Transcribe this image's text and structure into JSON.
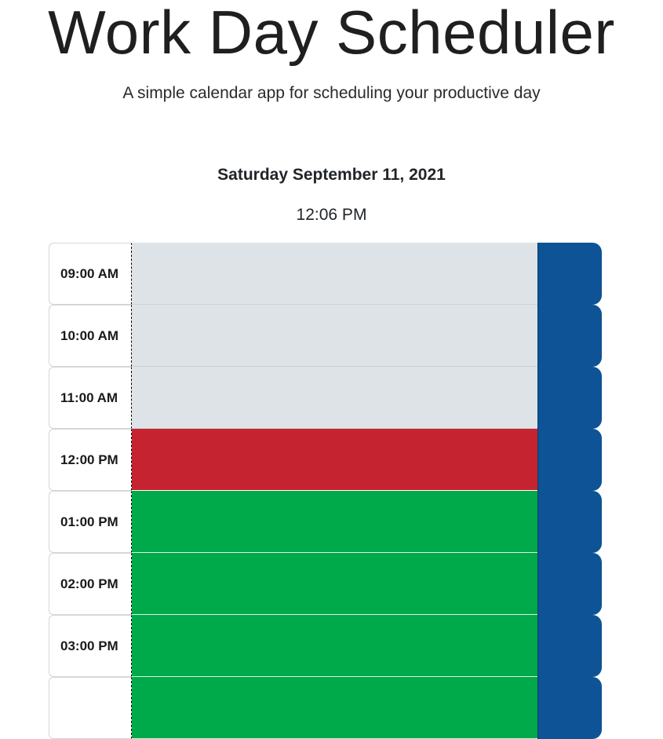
{
  "header": {
    "title": "Work Day Scheduler",
    "subtitle": "A simple calendar app for scheduling your productive day"
  },
  "today": {
    "date": "Saturday September 11, 2021",
    "time": "12:06 PM"
  },
  "colors": {
    "past": "#dde3e7",
    "present": "#c5232f",
    "future": "#00a94a",
    "save_button": "#0d5396"
  },
  "time_blocks": [
    {
      "hour": "09:00 AM",
      "state": "past",
      "description": ""
    },
    {
      "hour": "10:00 AM",
      "state": "past",
      "description": ""
    },
    {
      "hour": "11:00 AM",
      "state": "past",
      "description": ""
    },
    {
      "hour": "12:00 PM",
      "state": "present",
      "description": ""
    },
    {
      "hour": "01:00 PM",
      "state": "future",
      "description": ""
    },
    {
      "hour": "02:00 PM",
      "state": "future",
      "description": ""
    },
    {
      "hour": "03:00 PM",
      "state": "future",
      "description": ""
    },
    {
      "hour": "",
      "state": "future",
      "description": ""
    }
  ]
}
